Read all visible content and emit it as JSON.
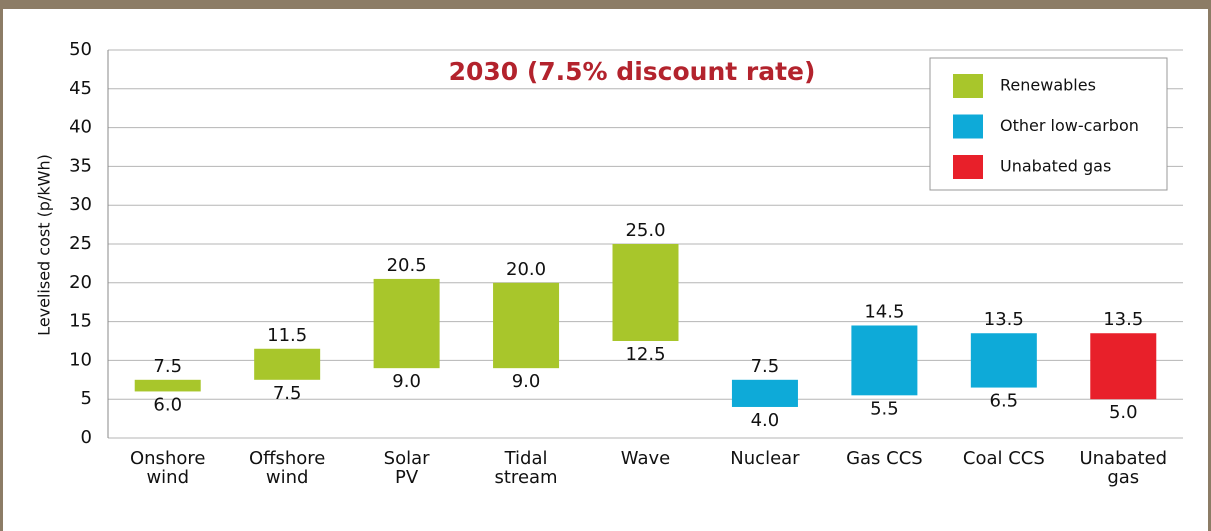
{
  "chart_data": {
    "type": "floating-bar",
    "title": "2030 (7.5% discount rate)",
    "y_label": "Levelised cost (p/kWh)",
    "categories": [
      [
        "Onshore",
        "wind"
      ],
      [
        "Offshore",
        "wind"
      ],
      [
        "Solar",
        "PV"
      ],
      [
        "Tidal",
        "stream"
      ],
      [
        "Wave"
      ],
      [
        "Nuclear"
      ],
      [
        "Gas CCS"
      ],
      [
        "Coal CCS"
      ],
      [
        "Unabated",
        "gas"
      ]
    ],
    "low": [
      6,
      7.5,
      9,
      9,
      12.5,
      4,
      5.5,
      6.5,
      5
    ],
    "low_labels": [
      "6.0",
      "7.5",
      "9.0",
      "9.0",
      "12.5",
      "4.0",
      "5.5",
      "6.5",
      "5.0"
    ],
    "high": [
      7.5,
      11.5,
      20.5,
      20,
      25,
      7.5,
      14.5,
      13.5,
      13.5
    ],
    "high_labels": [
      "7.5",
      "11.5",
      "20.5",
      "20.0",
      "25.0",
      "7.5",
      "14.5",
      "13.5",
      "13.5"
    ],
    "group": [
      0,
      0,
      0,
      0,
      0,
      1,
      1,
      1,
      2
    ],
    "legend": [
      {
        "name": "Renewables",
        "color": "#a8c62b"
      },
      {
        "name": "Other low-carbon",
        "color": "#0eaad8"
      },
      {
        "name": "Unabated gas",
        "color": "#e8202a"
      }
    ],
    "ylim": [
      0,
      50
    ],
    "yticks": [
      0,
      5,
      10,
      15,
      20,
      25,
      30,
      35,
      40,
      45,
      50
    ],
    "grid": true,
    "legend_position": "upper right"
  }
}
